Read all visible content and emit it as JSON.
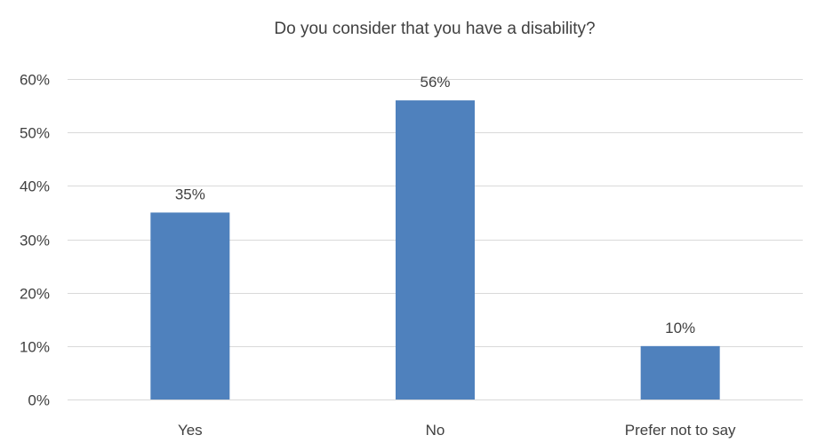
{
  "chart_data": {
    "type": "bar",
    "title": "Do you consider that you have a disability?",
    "xlabel": "",
    "ylabel": "",
    "categories": [
      "Yes",
      "No",
      "Prefer not to say"
    ],
    "values": [
      0.35,
      0.56,
      0.1
    ],
    "data_labels": [
      "35%",
      "56%",
      "10%"
    ],
    "ylim": [
      0,
      0.6
    ],
    "yticks": [
      0,
      0.1,
      0.2,
      0.3,
      0.4,
      0.5,
      0.6
    ],
    "ytick_labels": [
      "0%",
      "10%",
      "20%",
      "30%",
      "40%",
      "50%",
      "60%"
    ],
    "grid": true,
    "legend": "none",
    "bar_color": "#4f81bd",
    "gridline_color": "#d9d9d9",
    "text_color": "#404040"
  }
}
